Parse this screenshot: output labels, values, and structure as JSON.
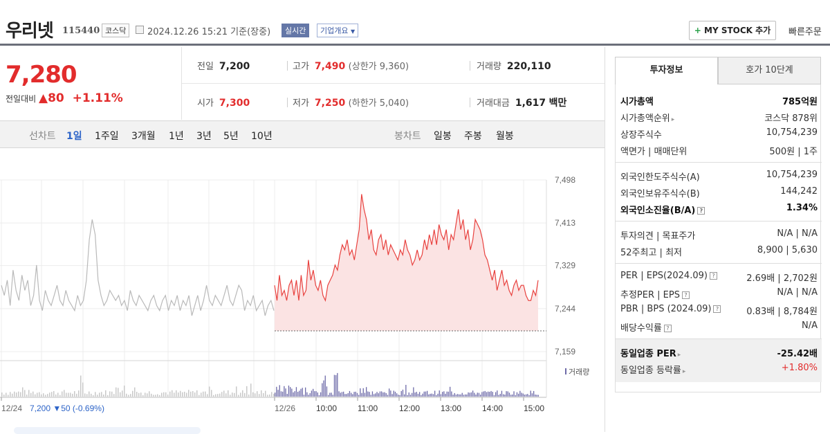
{
  "header": {
    "name": "우리넷",
    "code": "115440",
    "market": "코스닥",
    "datetime": "2024.12.26 15:21",
    "basis": "기준(장중)",
    "realtime": "실시간",
    "company_info": "기업개요",
    "mystock_plus": "+",
    "mystock_label": "MY STOCK 추가",
    "quick_order": "빠른주문"
  },
  "price": {
    "current": "7,280",
    "vs_label": "전일대비",
    "change": "80",
    "change_pct": "+1.11%"
  },
  "stats": {
    "prev_label": "전일",
    "prev": "7,200",
    "high_label": "고가",
    "high": "7,490",
    "upper": "(상한가 9,360)",
    "volume_label": "거래량",
    "volume": "220,110",
    "open_label": "시가",
    "open": "7,300",
    "low_label": "저가",
    "low": "7,250",
    "lower": "(하한가 5,040)",
    "amount_label": "거래대금",
    "amount": "1,617",
    "amount_unit": "백만"
  },
  "chart_tabs": {
    "period_label": "선차트",
    "periods": [
      "1일",
      "1주일",
      "3개월",
      "1년",
      "3년",
      "5년",
      "10년"
    ],
    "candle_label": "봉차트",
    "candles": [
      "일봉",
      "주봉",
      "월봉"
    ]
  },
  "chart_data": {
    "type": "line",
    "y_ticks": [
      "7,498",
      "7,413",
      "7,329",
      "7,244",
      "7,159"
    ],
    "ylim": [
      7159,
      7498
    ],
    "x_ticks": [
      "12/24",
      "12/26",
      "10:00",
      "11:00",
      "12:00",
      "13:00",
      "14:00",
      "15:00"
    ],
    "prev_close_level": 7200,
    "volume_label": "거래량",
    "prev_day_summary": {
      "date": "12/24",
      "close": "7,200",
      "change": "▼50",
      "pct": "(-0.69%)"
    },
    "series": [
      {
        "day": "12/24",
        "values": [
          7290,
          7270,
          7300,
          7250,
          7320,
          7280,
          7260,
          7310,
          7280,
          7300,
          7250,
          7270,
          7330,
          7260,
          7240,
          7280,
          7260,
          7250,
          7270,
          7290,
          7260,
          7250,
          7280,
          7260,
          7250,
          7240,
          7270,
          7250,
          7260,
          7300,
          7380,
          7420,
          7390,
          7300,
          7270,
          7250,
          7260,
          7280,
          7270,
          7260,
          7270,
          7250,
          7260,
          7240,
          7280,
          7260,
          7250,
          7270,
          7260,
          7250,
          7240,
          7260,
          7270,
          7250,
          7240,
          7260,
          7270,
          7240,
          7260,
          7250,
          7270,
          7240,
          7260,
          7250,
          7270,
          7230,
          7250,
          7270,
          7240,
          7260,
          7290,
          7260,
          7250,
          7270,
          7260,
          7250,
          7270,
          7290,
          7260,
          7250,
          7270,
          7290,
          7280,
          7240,
          7260,
          7250,
          7270,
          7240,
          7250,
          7260,
          7230,
          7250,
          7260,
          7240
        ]
      },
      {
        "day": "12/26",
        "values": [
          7290,
          7260,
          7310,
          7270,
          7280,
          7260,
          7290,
          7300,
          7270,
          7300,
          7260,
          7310,
          7270,
          7280,
          7340,
          7300,
          7320,
          7290,
          7280,
          7300,
          7270,
          7260,
          7290,
          7300,
          7310,
          7330,
          7320,
          7350,
          7370,
          7360,
          7380,
          7350,
          7360,
          7340,
          7370,
          7400,
          7470,
          7440,
          7420,
          7380,
          7400,
          7360,
          7350,
          7380,
          7390,
          7360,
          7380,
          7350,
          7370,
          7360,
          7350,
          7340,
          7360,
          7350,
          7380,
          7360,
          7350,
          7330,
          7340,
          7360,
          7340,
          7350,
          7380,
          7360,
          7390,
          7370,
          7400,
          7370,
          7410,
          7390,
          7380,
          7400,
          7360,
          7390,
          7380,
          7410,
          7440,
          7400,
          7420,
          7380,
          7400,
          7360,
          7380,
          7420,
          7410,
          7400,
          7380,
          7350,
          7340,
          7320,
          7300,
          7320,
          7280,
          7300,
          7320,
          7290,
          7300,
          7280,
          7270,
          7290,
          7300,
          7280,
          7290,
          7290,
          7270,
          7260,
          7260,
          7280,
          7270,
          7300
        ]
      }
    ]
  },
  "side": {
    "tab_active": "투자정보",
    "tab_other": "호가 10단계",
    "groups": [
      [
        {
          "label": "시가총액",
          "value": "785억원",
          "bold": true
        },
        {
          "label": "시가총액순위",
          "value": "코스닥 878위",
          "arrow": true
        },
        {
          "label": "상장주식수",
          "value": "10,754,239"
        },
        {
          "label": "액면가 | 매매단위",
          "value": "500원 | 1주"
        }
      ],
      [
        {
          "label": "외국인한도주식수(A)",
          "value": "10,754,239"
        },
        {
          "label": "외국인보유주식수(B)",
          "value": "144,242"
        },
        {
          "label": "외국인소진율(B/A)",
          "value": "1.34%",
          "bold": true,
          "help": true
        }
      ],
      [
        {
          "label": "투자의견 | 목표주가",
          "value": "N/A | N/A"
        },
        {
          "label": "52주최고 | 최저",
          "value": "8,900 | 5,630"
        }
      ],
      [
        {
          "label": "PER | EPS(2024.09)",
          "value": "2.69배 | 2,702원",
          "help": true
        },
        {
          "label": "추정PER | EPS",
          "value": "N/A | N/A",
          "help": true
        },
        {
          "label": "PBR | BPS (2024.09)",
          "value": "0.83배 | 8,784원",
          "help": true
        },
        {
          "label": "배당수익률",
          "value": "N/A",
          "help": true
        }
      ],
      [
        {
          "label": "동일업종 PER",
          "value": "-25.42배",
          "bold": true,
          "arrow": true
        },
        {
          "label": "동일업종 등락률",
          "value": "+1.80%",
          "red": true,
          "arrow": true
        }
      ]
    ]
  },
  "colors": {
    "up": "#e22c2c",
    "down": "#2d64c8",
    "line_today": "#e8413e",
    "line_prev": "#b9b9b9",
    "fill_today": "#fbe3e3",
    "volume_today": "#6d6aa8",
    "volume_prev": "#c8c8c8",
    "tab_active": "#2d64c8"
  },
  "icons": [
    "calendar-icon",
    "chevron-down-icon",
    "up-triangle-icon",
    "help-icon",
    "chevron-right-icon"
  ]
}
